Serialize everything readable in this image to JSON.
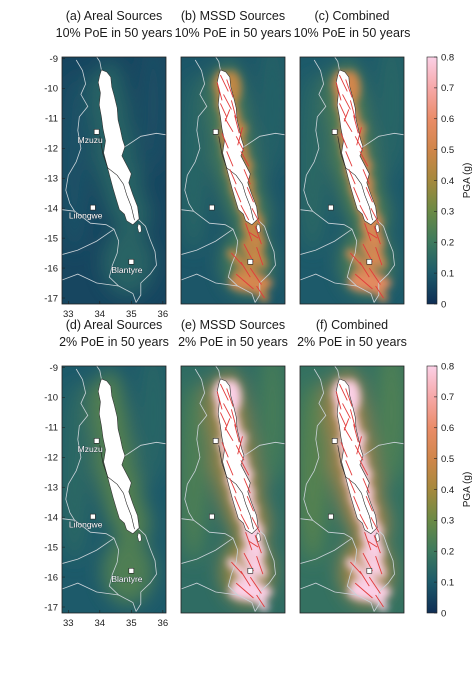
{
  "rows": [
    {
      "panels": [
        {
          "title1": "(a) Areal Sources",
          "title2": "10% PoE in 50 years",
          "faults": false,
          "cities": true,
          "level": 0.12
        },
        {
          "title1": "(b) MSSD Sources",
          "title2": "10% PoE in 50 years",
          "faults": true,
          "cities": false,
          "level": 0.2
        },
        {
          "title1": "(c) Combined",
          "title2": "10% PoE in 50 years",
          "faults": true,
          "cities": false,
          "level": 0.22
        }
      ]
    },
    {
      "panels": [
        {
          "title1": "(d) Areal Sources",
          "title2": "2% PoE in 50 years",
          "faults": false,
          "cities": true,
          "level": 0.22
        },
        {
          "title1": "(e) MSSD Sources",
          "title2": "2% PoE in 50 years",
          "faults": true,
          "cities": false,
          "level": 0.35
        },
        {
          "title1": "(f) Combined",
          "title2": "2% PoE in 50 years",
          "faults": true,
          "cities": false,
          "level": 0.38
        }
      ]
    }
  ],
  "lat_ticks": [
    "-9",
    "-10",
    "-11",
    "-12",
    "-13",
    "-14",
    "-15",
    "-16",
    "-17"
  ],
  "lon_ticks": [
    "33",
    "34",
    "35",
    "36"
  ],
  "cities": [
    "Mzuzu",
    "Lilongwe",
    "Blantyre"
  ],
  "colorbar": {
    "label": "PGA (g)",
    "ticks": [
      "0",
      "0.1",
      "0.2",
      "0.3",
      "0.4",
      "0.5",
      "0.6",
      "0.7",
      "0.8"
    ],
    "colors": [
      "#0f2e55",
      "#1d5a6a",
      "#3d7a5e",
      "#6a8a45",
      "#a5893d",
      "#d0864a",
      "#ea8c68",
      "#f6a8a8",
      "#fbd0e6"
    ]
  }
}
